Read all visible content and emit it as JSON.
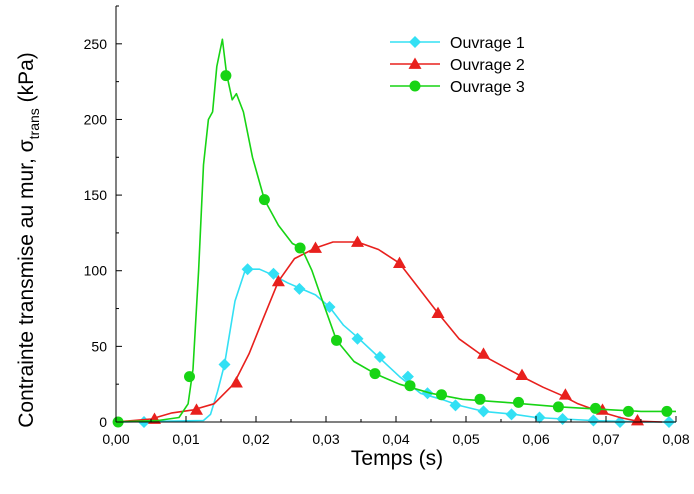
{
  "chart_data": {
    "type": "line",
    "xlabel": "Temps (s)",
    "ylabel": {
      "main": "Contrainte transmise au mur, σ",
      "sub": "trans",
      "unit": " (kPa)"
    },
    "xlim": [
      0,
      0.08
    ],
    "ylim": [
      0,
      275
    ],
    "x_ticks": [
      0,
      0.01,
      0.02,
      0.03,
      0.04,
      0.05,
      0.06,
      0.07,
      0.08
    ],
    "x_tick_labels": [
      "0,00",
      "0,01",
      "0,02",
      "0,03",
      "0,04",
      "0,05",
      "0,06",
      "0,07",
      "0,08"
    ],
    "y_ticks": [
      0,
      50,
      100,
      150,
      200,
      250
    ],
    "y_tick_labels": [
      "0",
      "50",
      "100",
      "150",
      "200",
      "250"
    ],
    "grid": false,
    "legend": "top-right",
    "series": [
      {
        "name": "Ouvrage 1",
        "color": "#33e0f4",
        "marker": "diamond",
        "line": [
          [
            0,
            0
          ],
          [
            0.0125,
            1
          ],
          [
            0.0135,
            5
          ],
          [
            0.0145,
            20
          ],
          [
            0.0155,
            38
          ],
          [
            0.017,
            80
          ],
          [
            0.0185,
            101
          ],
          [
            0.0205,
            101
          ],
          [
            0.0225,
            97
          ],
          [
            0.0245,
            92
          ],
          [
            0.0265,
            88
          ],
          [
            0.0285,
            84
          ],
          [
            0.0305,
            76
          ],
          [
            0.0325,
            64
          ],
          [
            0.0345,
            56
          ],
          [
            0.0375,
            43
          ],
          [
            0.0405,
            30
          ],
          [
            0.0435,
            19
          ],
          [
            0.0465,
            15
          ],
          [
            0.049,
            11
          ],
          [
            0.0525,
            7
          ],
          [
            0.057,
            5
          ],
          [
            0.06,
            3
          ],
          [
            0.064,
            2
          ],
          [
            0.068,
            1
          ],
          [
            0.075,
            0
          ],
          [
            0.08,
            0
          ]
        ],
        "markers": [
          [
            0.004,
            0
          ],
          [
            0.0155,
            38
          ],
          [
            0.0188,
            101
          ],
          [
            0.0225,
            98
          ],
          [
            0.0262,
            88
          ],
          [
            0.0305,
            76
          ],
          [
            0.0345,
            55
          ],
          [
            0.0377,
            43
          ],
          [
            0.0417,
            30
          ],
          [
            0.0445,
            19
          ],
          [
            0.0485,
            11
          ],
          [
            0.0525,
            7
          ],
          [
            0.0565,
            5
          ],
          [
            0.0605,
            3
          ],
          [
            0.0638,
            2
          ],
          [
            0.0682,
            1
          ],
          [
            0.072,
            0
          ],
          [
            0.079,
            0
          ]
        ]
      },
      {
        "name": "Ouvrage 2",
        "color": "#e8201d",
        "marker": "triangle",
        "line": [
          [
            0,
            0
          ],
          [
            0.005,
            2
          ],
          [
            0.008,
            6
          ],
          [
            0.011,
            8
          ],
          [
            0.014,
            12
          ],
          [
            0.0168,
            25
          ],
          [
            0.019,
            45
          ],
          [
            0.021,
            68
          ],
          [
            0.0232,
            93
          ],
          [
            0.0255,
            108
          ],
          [
            0.0285,
            115
          ],
          [
            0.031,
            119
          ],
          [
            0.0345,
            119
          ],
          [
            0.0375,
            114
          ],
          [
            0.0405,
            105
          ],
          [
            0.043,
            90
          ],
          [
            0.046,
            72
          ],
          [
            0.049,
            55
          ],
          [
            0.052,
            45
          ],
          [
            0.056,
            35
          ],
          [
            0.058,
            30
          ],
          [
            0.061,
            23
          ],
          [
            0.0635,
            18
          ],
          [
            0.066,
            12
          ],
          [
            0.069,
            7
          ],
          [
            0.072,
            3
          ],
          [
            0.0745,
            0.5
          ],
          [
            0.078,
            0
          ]
        ],
        "markers": [
          [
            0.0055,
            2
          ],
          [
            0.0115,
            8
          ],
          [
            0.0172,
            26
          ],
          [
            0.0232,
            93
          ],
          [
            0.0285,
            115
          ],
          [
            0.0345,
            119
          ],
          [
            0.0405,
            105
          ],
          [
            0.046,
            72
          ],
          [
            0.0525,
            45
          ],
          [
            0.058,
            31
          ],
          [
            0.0642,
            18
          ],
          [
            0.0695,
            8
          ],
          [
            0.0745,
            1
          ]
        ]
      },
      {
        "name": "Ouvrage 3",
        "color": "#17d414",
        "marker": "circle",
        "line": [
          [
            0,
            0
          ],
          [
            0.006,
            1
          ],
          [
            0.009,
            3
          ],
          [
            0.0103,
            12
          ],
          [
            0.011,
            35
          ],
          [
            0.0118,
            100
          ],
          [
            0.0125,
            170
          ],
          [
            0.0132,
            200
          ],
          [
            0.0138,
            205
          ],
          [
            0.0144,
            235
          ],
          [
            0.0152,
            253
          ],
          [
            0.0158,
            230
          ],
          [
            0.0166,
            213
          ],
          [
            0.0172,
            217
          ],
          [
            0.0182,
            205
          ],
          [
            0.0195,
            175
          ],
          [
            0.0212,
            147
          ],
          [
            0.0232,
            130
          ],
          [
            0.0252,
            118
          ],
          [
            0.0265,
            115
          ],
          [
            0.028,
            100
          ],
          [
            0.0295,
            80
          ],
          [
            0.0315,
            54
          ],
          [
            0.034,
            40
          ],
          [
            0.037,
            32
          ],
          [
            0.0405,
            25
          ],
          [
            0.045,
            19
          ],
          [
            0.0495,
            15
          ],
          [
            0.0555,
            13
          ],
          [
            0.0635,
            10
          ],
          [
            0.071,
            8
          ],
          [
            0.075,
            7
          ],
          [
            0.08,
            7
          ]
        ],
        "markers": [
          [
            0.0003,
            0
          ],
          [
            0.0105,
            30
          ],
          [
            0.0157,
            229
          ],
          [
            0.0212,
            147
          ],
          [
            0.0263,
            115
          ],
          [
            0.0315,
            54
          ],
          [
            0.037,
            32
          ],
          [
            0.042,
            24
          ],
          [
            0.0465,
            18
          ],
          [
            0.052,
            15
          ],
          [
            0.0575,
            13
          ],
          [
            0.0632,
            10
          ],
          [
            0.0685,
            9
          ],
          [
            0.0732,
            7
          ],
          [
            0.0787,
            7
          ]
        ]
      }
    ]
  }
}
